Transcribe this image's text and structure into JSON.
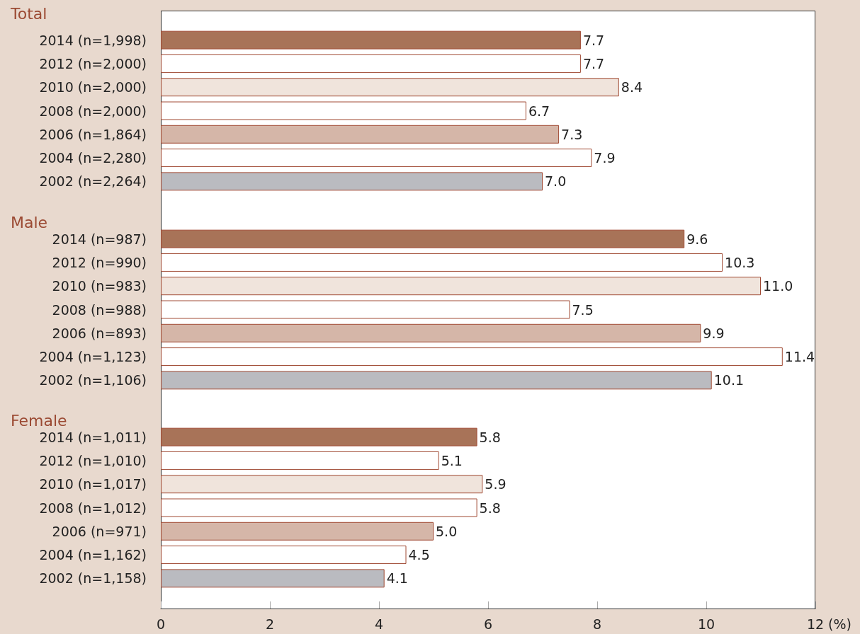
{
  "chart_data": [
    {
      "type": "bar",
      "orientation": "horizontal",
      "title": "Total",
      "categories": [
        "2014 (n=1,998)",
        "2012 (n=2,000)",
        "2010 (n=2,000)",
        "2008 (n=2,000)",
        "2006 (n=1,864)",
        "2004 (n=2,280)",
        "2002 (n=2,264)"
      ],
      "values": [
        7.7,
        7.7,
        8.4,
        6.7,
        7.3,
        7.9,
        7.0
      ],
      "value_labels": [
        "7.7",
        "7.7",
        "8.4",
        "6.7",
        "7.3",
        "7.9",
        "7.0"
      ],
      "colors": [
        "#a87358",
        "#ffffff",
        "#f0e4dc",
        "#ffffff",
        "#d5b6a8",
        "#ffffff",
        "#babbc0"
      ],
      "xlim": [
        0,
        12
      ],
      "xticks": [
        0,
        2,
        4,
        6,
        8,
        10,
        12
      ],
      "tick_labels": "y"
    },
    {
      "type": "bar",
      "orientation": "horizontal",
      "title": "Male",
      "categories": [
        "2014 (n=987)",
        "2012 (n=990)",
        "2010 (n=983)",
        "2008 (n=988)",
        "2006 (n=893)",
        "2004 (n=1,123)",
        "2002 (n=1,106)"
      ],
      "values": [
        9.6,
        10.3,
        11.0,
        7.5,
        9.9,
        11.4,
        10.1
      ],
      "value_labels": [
        "9.6",
        "10.3",
        "11.0",
        "7.5",
        "9.9",
        "11.4",
        "10.1"
      ],
      "colors": [
        "#a87358",
        "#ffffff",
        "#f0e4dc",
        "#ffffff",
        "#d5b6a8",
        "#ffffff",
        "#babbc0"
      ],
      "xlim": [
        0,
        12
      ],
      "xticks": [
        0,
        2,
        4,
        6,
        8,
        10,
        12
      ],
      "tick_labels": "y"
    },
    {
      "type": "bar",
      "orientation": "horizontal",
      "title": "Female",
      "xlabel": "(%)",
      "categories": [
        "2014 (n=1,011)",
        "2012 (n=1,010)",
        "2010 (n=1,017)",
        "2008 (n=1,012)",
        "2006 (n=971)",
        "2004 (n=1,162)",
        "2002 (n=1,158)"
      ],
      "values": [
        5.8,
        5.1,
        5.9,
        5.8,
        5.0,
        4.5,
        4.1
      ],
      "value_labels": [
        "5.8",
        "5.1",
        "5.9",
        "5.8",
        "5.0",
        "4.5",
        "4.1"
      ],
      "colors": [
        "#a87358",
        "#ffffff",
        "#f0e4dc",
        "#ffffff",
        "#d5b6a8",
        "#ffffff",
        "#babbc0"
      ],
      "xlim": [
        0,
        12
      ],
      "xticks": [
        0,
        2,
        4,
        6,
        8,
        10,
        12
      ]
    }
  ]
}
